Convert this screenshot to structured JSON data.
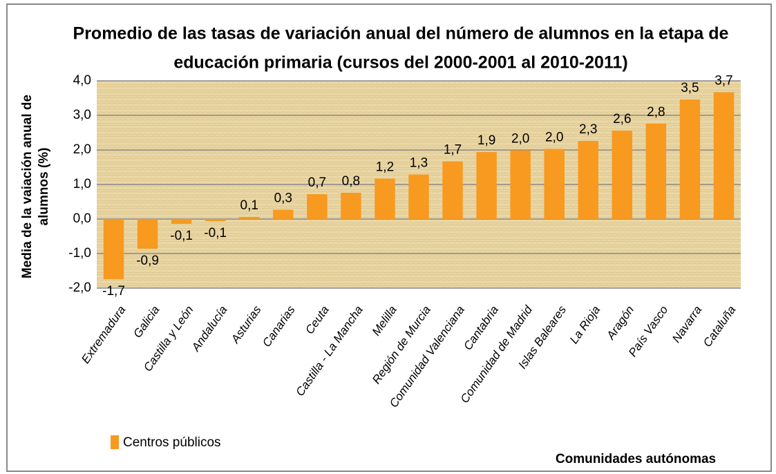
{
  "chart_data": {
    "type": "bar",
    "title": [
      "Promedio de las tasas de variación anual  del número  de alumnos en la etapa de",
      "educación  primaria (cursos del 2000-2001 al 2010-2011)"
    ],
    "y_axis_label": [
      "Media de la vaiación anual de",
      "alumnos (%)"
    ],
    "x_axis_label": "Comunidades autónomas",
    "categories": [
      "Extremadura",
      "Galicia",
      "Castilla y León",
      "Andalucía",
      "Asturias",
      "Canarias",
      "Ceuta",
      "Castilla - La Mancha",
      "Melilla",
      "Región de Murcia",
      "Comunidad Valenciana",
      "Cantabria",
      "Comunidad de Madrid",
      "Islas Baleares",
      "La Rioja",
      "Aragón",
      "País Vasco",
      "Navarra",
      "Cataluña"
    ],
    "series": [
      {
        "name": "Centros públicos",
        "color": "#f79a1f",
        "values": [
          -1.74,
          -0.86,
          -0.14,
          -0.06,
          0.06,
          0.27,
          0.72,
          0.76,
          1.17,
          1.29,
          1.67,
          1.94,
          1.99,
          2.03,
          2.26,
          2.56,
          2.76,
          3.46,
          3.67
        ],
        "value_labels": [
          "-1,7",
          "-0,9",
          "-0,1",
          "-0,1",
          "0,1",
          "0,3",
          "0,7",
          "0,8",
          "1,2",
          "1,3",
          "1,7",
          "1,9",
          "2,0",
          "2,0",
          "2,3",
          "2,6",
          "2,8",
          "3,5",
          "3,7"
        ]
      }
    ],
    "ylim": [
      -2,
      4
    ],
    "yticks": [
      {
        "value": -2,
        "label": "-2,0"
      },
      {
        "value": -1,
        "label": "-1,0"
      },
      {
        "value": 0,
        "label": "0,0"
      },
      {
        "value": 1,
        "label": "1,0"
      },
      {
        "value": 2,
        "label": "2,0"
      },
      {
        "value": 3,
        "label": "3,0"
      },
      {
        "value": 4,
        "label": "4,0"
      }
    ],
    "grid": true
  }
}
